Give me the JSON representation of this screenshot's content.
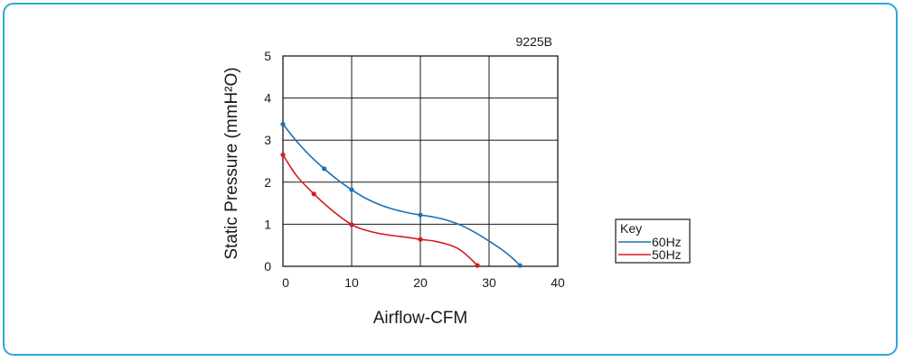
{
  "chart_data": {
    "type": "line",
    "model_label": "9225B",
    "xlabel": "Airflow-CFM",
    "ylabel": "Static Pressure (mmH²O)",
    "xlim": [
      0,
      40
    ],
    "ylim": [
      0,
      5
    ],
    "x_ticks": [
      "0",
      "10",
      "20",
      "30",
      "40"
    ],
    "y_ticks": [
      "0",
      "1",
      "2",
      "3",
      "4",
      "5"
    ],
    "grid": true,
    "legend": {
      "title": "Key",
      "placement": "right"
    },
    "series": [
      {
        "name": "60Hz",
        "color": "#1f6fb4",
        "curve": [
          [
            0,
            3.38
          ],
          [
            2,
            2.97
          ],
          [
            4,
            2.62
          ],
          [
            6,
            2.32
          ],
          [
            8,
            2.05
          ],
          [
            10,
            1.82
          ],
          [
            12,
            1.62
          ],
          [
            14,
            1.47
          ],
          [
            16,
            1.36
          ],
          [
            18,
            1.28
          ],
          [
            20,
            1.22
          ],
          [
            22,
            1.17
          ],
          [
            24,
            1.09
          ],
          [
            26,
            0.97
          ],
          [
            28,
            0.8
          ],
          [
            30,
            0.6
          ],
          [
            32,
            0.38
          ],
          [
            33.5,
            0.18
          ],
          [
            34.5,
            0.02
          ]
        ],
        "markers": [
          [
            0,
            3.38
          ],
          [
            6,
            2.32
          ],
          [
            10,
            1.82
          ],
          [
            20,
            1.22
          ],
          [
            34.5,
            0.02
          ]
        ]
      },
      {
        "name": "50Hz",
        "color": "#d71920",
        "curve": [
          [
            0,
            2.65
          ],
          [
            2,
            2.15
          ],
          [
            4.5,
            1.72
          ],
          [
            7,
            1.35
          ],
          [
            10,
            0.99
          ],
          [
            12,
            0.86
          ],
          [
            14,
            0.78
          ],
          [
            16,
            0.73
          ],
          [
            18,
            0.69
          ],
          [
            20,
            0.64
          ],
          [
            22,
            0.6
          ],
          [
            24,
            0.52
          ],
          [
            25.5,
            0.42
          ],
          [
            26.5,
            0.3
          ],
          [
            27.5,
            0.15
          ],
          [
            28.3,
            0.02
          ]
        ],
        "markers": [
          [
            0,
            2.65
          ],
          [
            4.5,
            1.72
          ],
          [
            10,
            0.99
          ],
          [
            20,
            0.64
          ],
          [
            28.3,
            0.02
          ]
        ]
      }
    ]
  }
}
